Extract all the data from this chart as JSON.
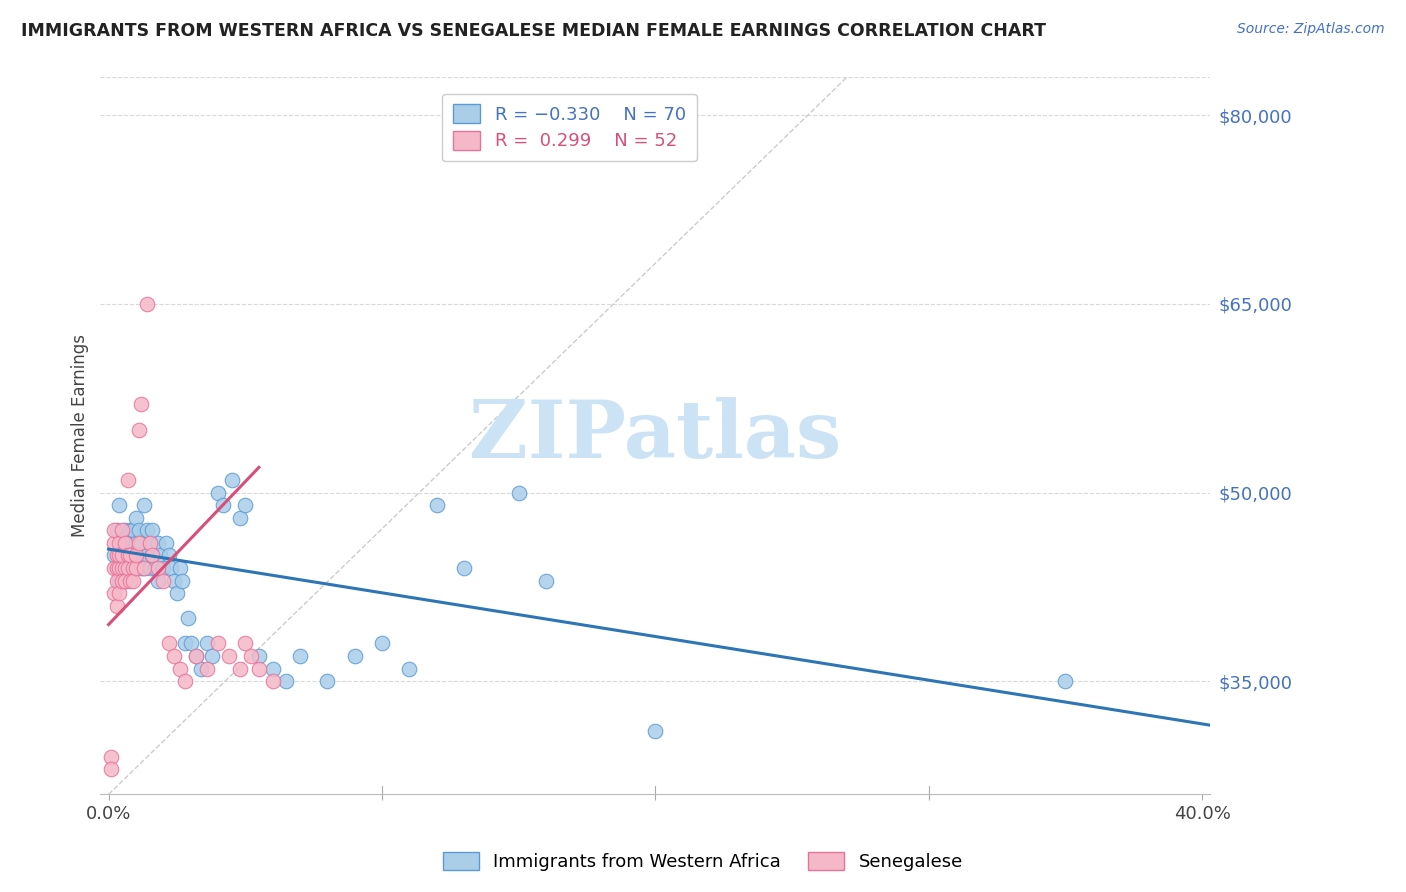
{
  "title": "IMMIGRANTS FROM WESTERN AFRICA VS SENEGALESE MEDIAN FEMALE EARNINGS CORRELATION CHART",
  "source": "Source: ZipAtlas.com",
  "ylabel": "Median Female Earnings",
  "y_ticks": [
    35000,
    50000,
    65000,
    80000
  ],
  "y_tick_labels": [
    "$35,000",
    "$50,000",
    "$65,000",
    "$80,000"
  ],
  "y_min": 26000,
  "y_max": 83000,
  "x_min": -0.003,
  "x_max": 0.403,
  "color_blue_fill": "#aacde8",
  "color_pink_fill": "#f5b8c8",
  "color_blue_edge": "#5b9bd5",
  "color_pink_edge": "#e87299",
  "color_blue_line": "#2e75b6",
  "color_pink_line": "#d94f7a",
  "color_blue_text": "#4472c4",
  "color_grid": "#d9d9d9",
  "color_diag": "#cccccc",
  "watermark_color": "#cce3f5",
  "blue_scatter_x": [
    0.002,
    0.003,
    0.004,
    0.004,
    0.005,
    0.005,
    0.006,
    0.006,
    0.006,
    0.007,
    0.007,
    0.008,
    0.008,
    0.008,
    0.009,
    0.009,
    0.01,
    0.01,
    0.01,
    0.011,
    0.011,
    0.012,
    0.012,
    0.013,
    0.013,
    0.014,
    0.014,
    0.015,
    0.015,
    0.016,
    0.016,
    0.017,
    0.018,
    0.018,
    0.019,
    0.02,
    0.021,
    0.022,
    0.023,
    0.024,
    0.025,
    0.026,
    0.027,
    0.028,
    0.029,
    0.03,
    0.032,
    0.034,
    0.036,
    0.038,
    0.04,
    0.042,
    0.045,
    0.048,
    0.05,
    0.055,
    0.06,
    0.065,
    0.07,
    0.08,
    0.09,
    0.1,
    0.11,
    0.12,
    0.13,
    0.15,
    0.16,
    0.2,
    0.35
  ],
  "blue_scatter_y": [
    45000,
    47000,
    43000,
    49000,
    46000,
    44000,
    43000,
    47000,
    45000,
    44000,
    46000,
    47000,
    44000,
    46000,
    45000,
    47000,
    44000,
    46000,
    48000,
    45000,
    47000,
    44000,
    46000,
    49000,
    44000,
    47000,
    45000,
    44000,
    46000,
    47000,
    45000,
    44000,
    46000,
    43000,
    45000,
    44000,
    46000,
    45000,
    44000,
    43000,
    42000,
    44000,
    43000,
    38000,
    40000,
    38000,
    37000,
    36000,
    38000,
    37000,
    50000,
    49000,
    51000,
    48000,
    49000,
    37000,
    36000,
    35000,
    37000,
    35000,
    37000,
    38000,
    36000,
    49000,
    44000,
    50000,
    43000,
    31000,
    35000
  ],
  "pink_scatter_x": [
    0.001,
    0.001,
    0.002,
    0.002,
    0.002,
    0.002,
    0.003,
    0.003,
    0.003,
    0.003,
    0.004,
    0.004,
    0.004,
    0.004,
    0.005,
    0.005,
    0.005,
    0.005,
    0.006,
    0.006,
    0.006,
    0.007,
    0.007,
    0.007,
    0.008,
    0.008,
    0.009,
    0.009,
    0.01,
    0.01,
    0.011,
    0.011,
    0.012,
    0.013,
    0.014,
    0.015,
    0.016,
    0.018,
    0.02,
    0.022,
    0.024,
    0.026,
    0.028,
    0.032,
    0.036,
    0.04,
    0.044,
    0.048,
    0.05,
    0.052,
    0.055,
    0.06
  ],
  "pink_scatter_y": [
    29000,
    28000,
    44000,
    42000,
    46000,
    47000,
    44000,
    41000,
    43000,
    45000,
    44000,
    42000,
    46000,
    45000,
    44000,
    43000,
    45000,
    47000,
    44000,
    46000,
    43000,
    51000,
    45000,
    44000,
    43000,
    45000,
    44000,
    43000,
    44000,
    45000,
    55000,
    46000,
    57000,
    44000,
    65000,
    46000,
    45000,
    44000,
    43000,
    38000,
    37000,
    36000,
    35000,
    37000,
    36000,
    38000,
    37000,
    36000,
    38000,
    37000,
    36000,
    35000
  ],
  "blue_line_x": [
    0.0,
    0.403
  ],
  "blue_line_y": [
    45500,
    31500
  ],
  "pink_line_x": [
    0.0,
    0.055
  ],
  "pink_line_y": [
    39500,
    52000
  ],
  "diag_line_x": [
    0.0,
    0.27
  ],
  "diag_line_y": [
    26000,
    83000
  ]
}
